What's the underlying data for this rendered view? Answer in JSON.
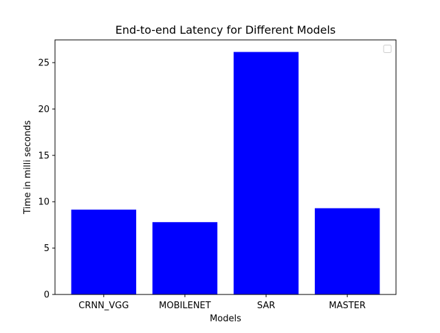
{
  "chart_data": {
    "type": "bar",
    "title": "End-to-end Latency for Different Models",
    "xlabel": "Models",
    "ylabel": "Time in milli seconds",
    "categories": [
      "CRNN_VGG",
      "MOBILENET",
      "SAR",
      "MASTER"
    ],
    "values": [
      9.15,
      7.8,
      26.15,
      9.3
    ],
    "ylim": [
      0,
      27.45
    ],
    "yticks": [
      0,
      5,
      10,
      15,
      20,
      25
    ],
    "bar_color": "#0000ff",
    "grid": false,
    "legend": {
      "location": "upper right",
      "entries": []
    }
  }
}
